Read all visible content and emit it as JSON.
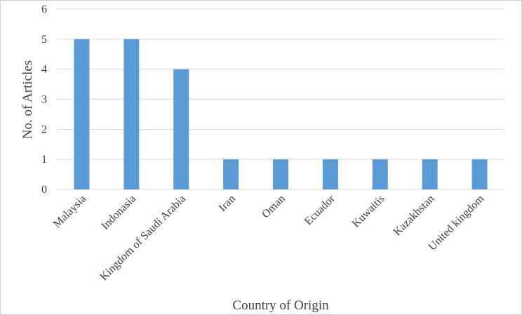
{
  "chart_data": {
    "type": "bar",
    "categories": [
      "Malaysia",
      "Indonasia",
      "Kingdom of Saudi Arabia",
      "Iran",
      "Oman",
      "Ecuador",
      "Kuwaitis",
      "Kazakhstan",
      "United kingdom"
    ],
    "values": [
      5,
      5,
      4,
      1,
      1,
      1,
      1,
      1,
      1
    ],
    "title": "",
    "xlabel": "Country of Origin",
    "ylabel": "No. of Articles",
    "ylim": [
      0,
      6
    ],
    "yticks": [
      "0",
      "1",
      "2",
      "3",
      "4",
      "5",
      "6"
    ],
    "grid": true,
    "legend": "none",
    "bar_color": "#5B9BD5"
  }
}
